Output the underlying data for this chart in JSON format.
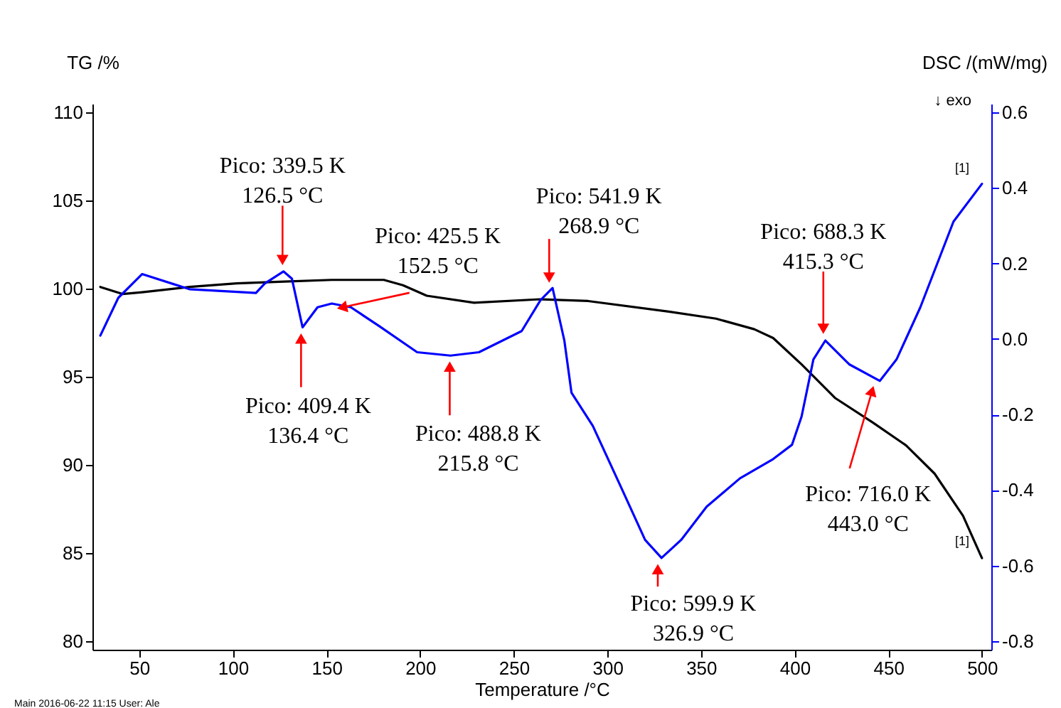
{
  "chart_data": {
    "type": "line",
    "xlabel": "Temperature /°C",
    "ylabel": "TG /%",
    "y2label": "DSC /(mW/mg)",
    "xlim": [
      25,
      505
    ],
    "xticks": [
      50,
      100,
      150,
      200,
      250,
      300,
      350,
      400,
      450,
      500
    ],
    "ylim": [
      79.5,
      110.5
    ],
    "yticks": [
      80,
      85,
      90,
      95,
      100,
      105,
      110
    ],
    "y2lim": [
      -0.823,
      0.623
    ],
    "y2ticks": [
      -0.8,
      -0.6,
      -0.4,
      -0.2,
      {
        "value": 0,
        "label": "0.0"
      },
      0.2,
      0.4,
      0.6
    ],
    "series": [
      {
        "color": "#000000",
        "x": [
          29.2,
          41,
          51.5,
          76.8,
          102,
          127.4,
          152.8,
          180.6,
          190.8,
          203.5,
          228.8,
          264,
          289.7,
          332.8,
          358,
          378.4,
          388.5,
          403.7,
          421.5,
          441.7,
          459.5,
          474.7,
          489.9,
          500
        ],
        "values": [
          100.1,
          99.7,
          99.8,
          100.1,
          100.3,
          100.4,
          100.5,
          100.5,
          100.2,
          99.6,
          99.2,
          99.4,
          99.3,
          98.7,
          98.3,
          97.7,
          97.2,
          95.7,
          93.8,
          92.4,
          91.1,
          89.5,
          87.1,
          84.7
        ]
      },
      {
        "color": "#0000ff",
        "axis": "y2",
        "x": [
          29.2,
          38.8,
          51.5,
          76.8,
          112.3,
          117,
          127,
          131.5,
          137.2,
          145.2,
          152.8,
          163,
          178.2,
          198.4,
          216.2,
          231.4,
          254.2,
          264.3,
          270.7,
          277,
          280.8,
          292.2,
          307.4,
          320.1,
          328.9,
          339.4,
          353,
          370.8,
          388.5,
          398.6,
          403.7,
          410,
          416.4,
          429.1,
          445.5,
          454.4,
          467.1,
          484.8,
          500
        ],
        "values": [
          0.009,
          0.109,
          0.172,
          0.132,
          0.122,
          0.147,
          0.179,
          0.16,
          0.031,
          0.084,
          0.094,
          0.084,
          0.034,
          -0.035,
          -0.044,
          -0.035,
          0.021,
          0.103,
          0.135,
          -0.004,
          -0.142,
          -0.23,
          -0.394,
          -0.532,
          -0.58,
          -0.532,
          -0.444,
          -0.369,
          -0.318,
          -0.28,
          -0.205,
          -0.054,
          -0.004,
          -0.067,
          -0.111,
          -0.054,
          0.084,
          0.311,
          0.411
        ]
      }
    ],
    "annotations": [
      {
        "text": "Pico: 339.5 K\n126.5 °C",
        "x": 126.5,
        "y": 101.0
      },
      {
        "text": "Pico: 409.4 K\n136.4 °C",
        "x": 136.4,
        "y": 97.8
      },
      {
        "text": "Pico: 425.5 K\n152.5 °C",
        "x": 152.5,
        "y": 98.8
      },
      {
        "text": "Pico: 488.8 K\n215.8 °C",
        "x": 215.8,
        "y": 96.2
      },
      {
        "text": "Pico: 541.9 K\n268.9 °C",
        "x": 268.9,
        "y": 100.0
      },
      {
        "text": "Pico: 599.9 K\n326.9 °C",
        "x": 326.9,
        "y": 84.7
      },
      {
        "text": "Pico: 688.3 K\n415.3 °C",
        "x": 415.3,
        "y": 97.1
      },
      {
        "text": "Pico: 716.0 K\n443.0 °C",
        "x": 443.0,
        "y": 94.8
      },
      {
        "text": "[1]",
        "x": 497,
        "y": 105.9
      },
      {
        "text": "[1]",
        "x": 497,
        "y": 84.7
      },
      "↓ exo",
      "Main   2016-06-22 11:15   User: Ale"
    ]
  }
}
